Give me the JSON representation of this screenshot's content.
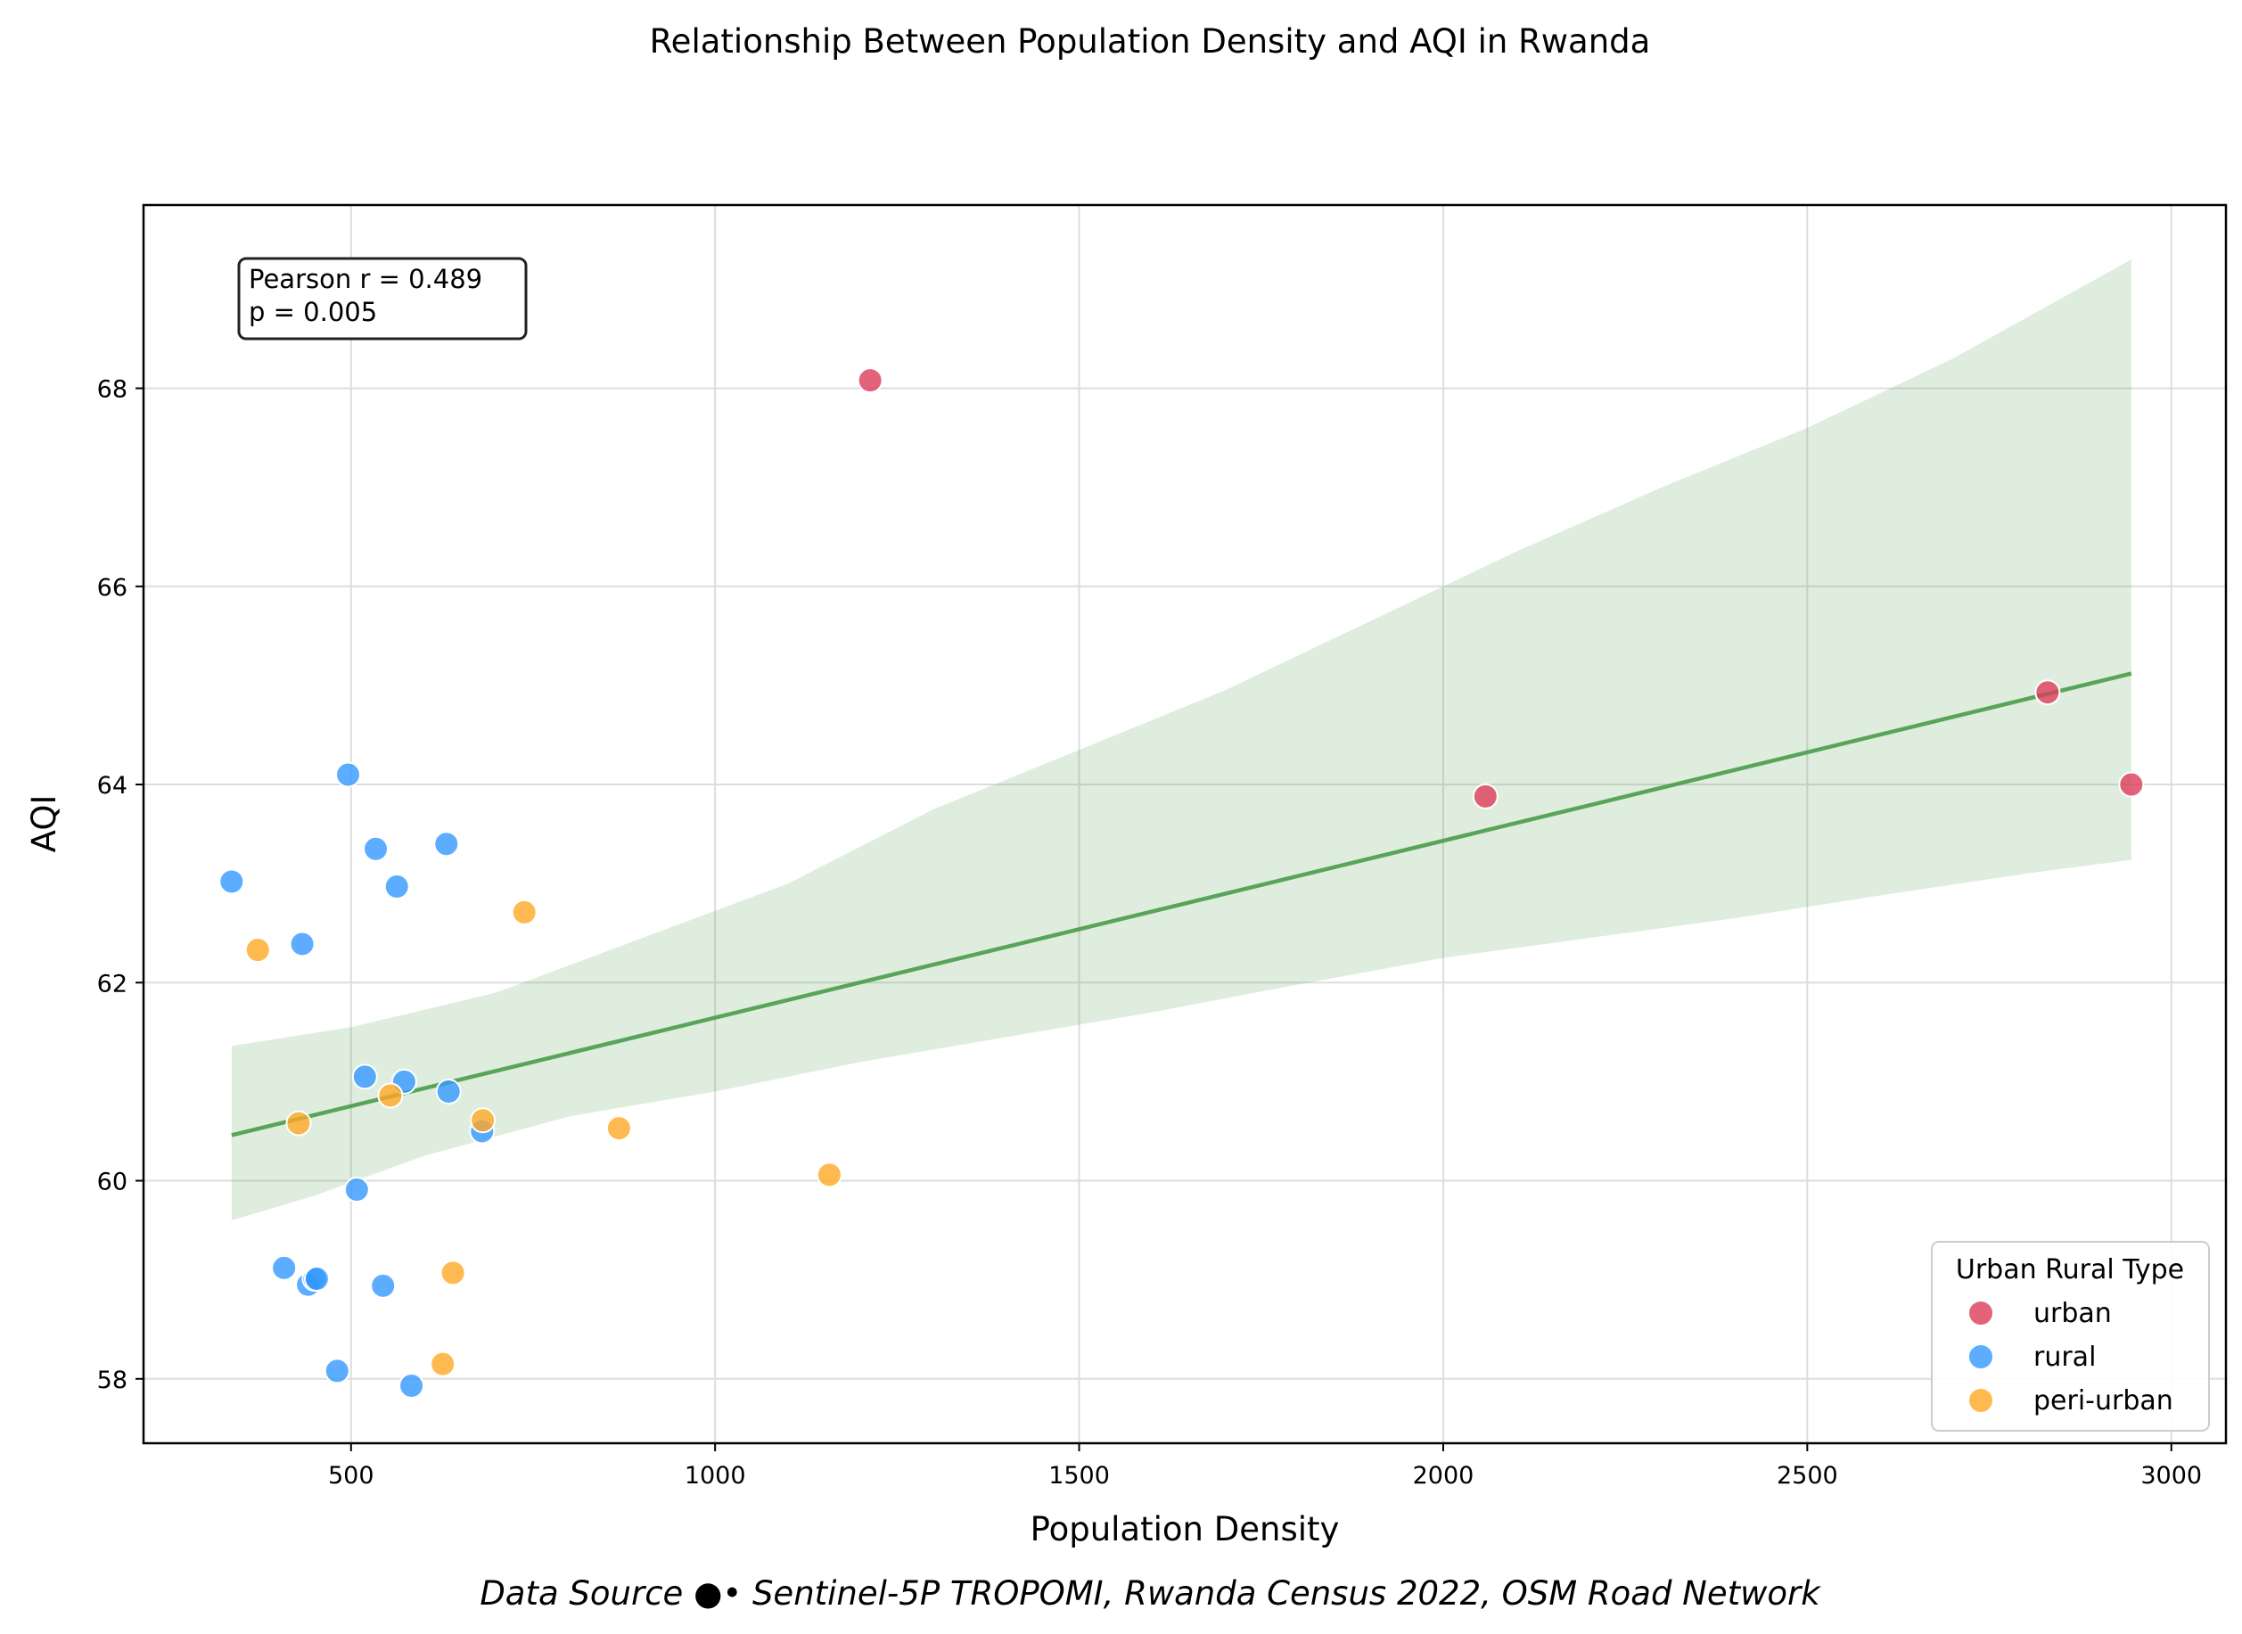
{
  "chart_data": {
    "type": "scatter",
    "title": "Relationship Between Population Density and AQI in Rwanda",
    "xlabel": "Population Density",
    "ylabel": "AQI",
    "xlim": [
      215,
      3075
    ],
    "ylim": [
      57.35,
      69.85
    ],
    "x_ticks": [
      500,
      1000,
      1500,
      2000,
      2500,
      3000
    ],
    "y_ticks": [
      58,
      60,
      62,
      64,
      66,
      68
    ],
    "grid": true,
    "legend": {
      "title": "Urban Rural Type",
      "placement": "lower-right",
      "entries": [
        "urban",
        "rural",
        "peri-urban"
      ]
    },
    "series": [
      {
        "name": "urban",
        "color": "#dc3c5a",
        "points": [
          {
            "x": 1213,
            "y": 68.08
          },
          {
            "x": 2058,
            "y": 63.88
          },
          {
            "x": 2830,
            "y": 64.93
          },
          {
            "x": 2945,
            "y": 64.0
          }
        ]
      },
      {
        "name": "rural",
        "color": "#3399ff",
        "points": [
          {
            "x": 336,
            "y": 63.02
          },
          {
            "x": 496,
            "y": 64.1
          },
          {
            "x": 534,
            "y": 63.35
          },
          {
            "x": 563,
            "y": 62.97
          },
          {
            "x": 631,
            "y": 63.4
          },
          {
            "x": 433,
            "y": 62.39
          },
          {
            "x": 519,
            "y": 61.05
          },
          {
            "x": 573,
            "y": 61.0
          },
          {
            "x": 634,
            "y": 60.9
          },
          {
            "x": 680,
            "y": 60.5
          },
          {
            "x": 508,
            "y": 59.91
          },
          {
            "x": 408,
            "y": 59.12
          },
          {
            "x": 441,
            "y": 58.95
          },
          {
            "x": 450,
            "y": 59.01
          },
          {
            "x": 453,
            "y": 59.01
          },
          {
            "x": 544,
            "y": 58.94
          },
          {
            "x": 481,
            "y": 58.08
          },
          {
            "x": 583,
            "y": 57.93
          }
        ]
      },
      {
        "name": "peri-urban",
        "color": "#ffa726",
        "points": [
          {
            "x": 372,
            "y": 62.33
          },
          {
            "x": 738,
            "y": 62.71
          },
          {
            "x": 428,
            "y": 60.58
          },
          {
            "x": 554,
            "y": 60.86
          },
          {
            "x": 681,
            "y": 60.61
          },
          {
            "x": 868,
            "y": 60.53
          },
          {
            "x": 1157,
            "y": 60.06
          },
          {
            "x": 640,
            "y": 59.07
          },
          {
            "x": 626,
            "y": 58.15
          }
        ]
      }
    ],
    "regression": {
      "color": "#4a9b4a",
      "line": [
        {
          "x": 336,
          "y": 60.46
        },
        {
          "x": 2945,
          "y": 65.12
        }
      ],
      "ci_color": "#4a9b4a",
      "ci_upper": [
        {
          "x": 336,
          "y": 61.36
        },
        {
          "x": 500,
          "y": 61.55
        },
        {
          "x": 700,
          "y": 61.9
        },
        {
          "x": 900,
          "y": 62.45
        },
        {
          "x": 1100,
          "y": 63.0
        },
        {
          "x": 1300,
          "y": 63.75
        },
        {
          "x": 1500,
          "y": 64.35
        },
        {
          "x": 1700,
          "y": 64.95
        },
        {
          "x": 1900,
          "y": 65.65
        },
        {
          "x": 2100,
          "y": 66.35
        },
        {
          "x": 2300,
          "y": 67.0
        },
        {
          "x": 2500,
          "y": 67.6
        },
        {
          "x": 2700,
          "y": 68.3
        },
        {
          "x": 2945,
          "y": 69.3
        }
      ],
      "ci_lower": [
        {
          "x": 336,
          "y": 59.6
        },
        {
          "x": 450,
          "y": 59.85
        },
        {
          "x": 600,
          "y": 60.25
        },
        {
          "x": 800,
          "y": 60.65
        },
        {
          "x": 1000,
          "y": 60.9
        },
        {
          "x": 1200,
          "y": 61.2
        },
        {
          "x": 1400,
          "y": 61.45
        },
        {
          "x": 1600,
          "y": 61.7
        },
        {
          "x": 1800,
          "y": 61.98
        },
        {
          "x": 2000,
          "y": 62.25
        },
        {
          "x": 2200,
          "y": 62.45
        },
        {
          "x": 2400,
          "y": 62.65
        },
        {
          "x": 2600,
          "y": 62.88
        },
        {
          "x": 2800,
          "y": 63.1
        },
        {
          "x": 2945,
          "y": 63.24
        }
      ]
    }
  },
  "annotations": {
    "stats_line1": "Pearson r = 0.489",
    "stats_line2": "p = 0.005",
    "source": "Data Source ●• Sentinel-5P TROPOMI, Rwanda Census 2022, OSM Road Network"
  }
}
